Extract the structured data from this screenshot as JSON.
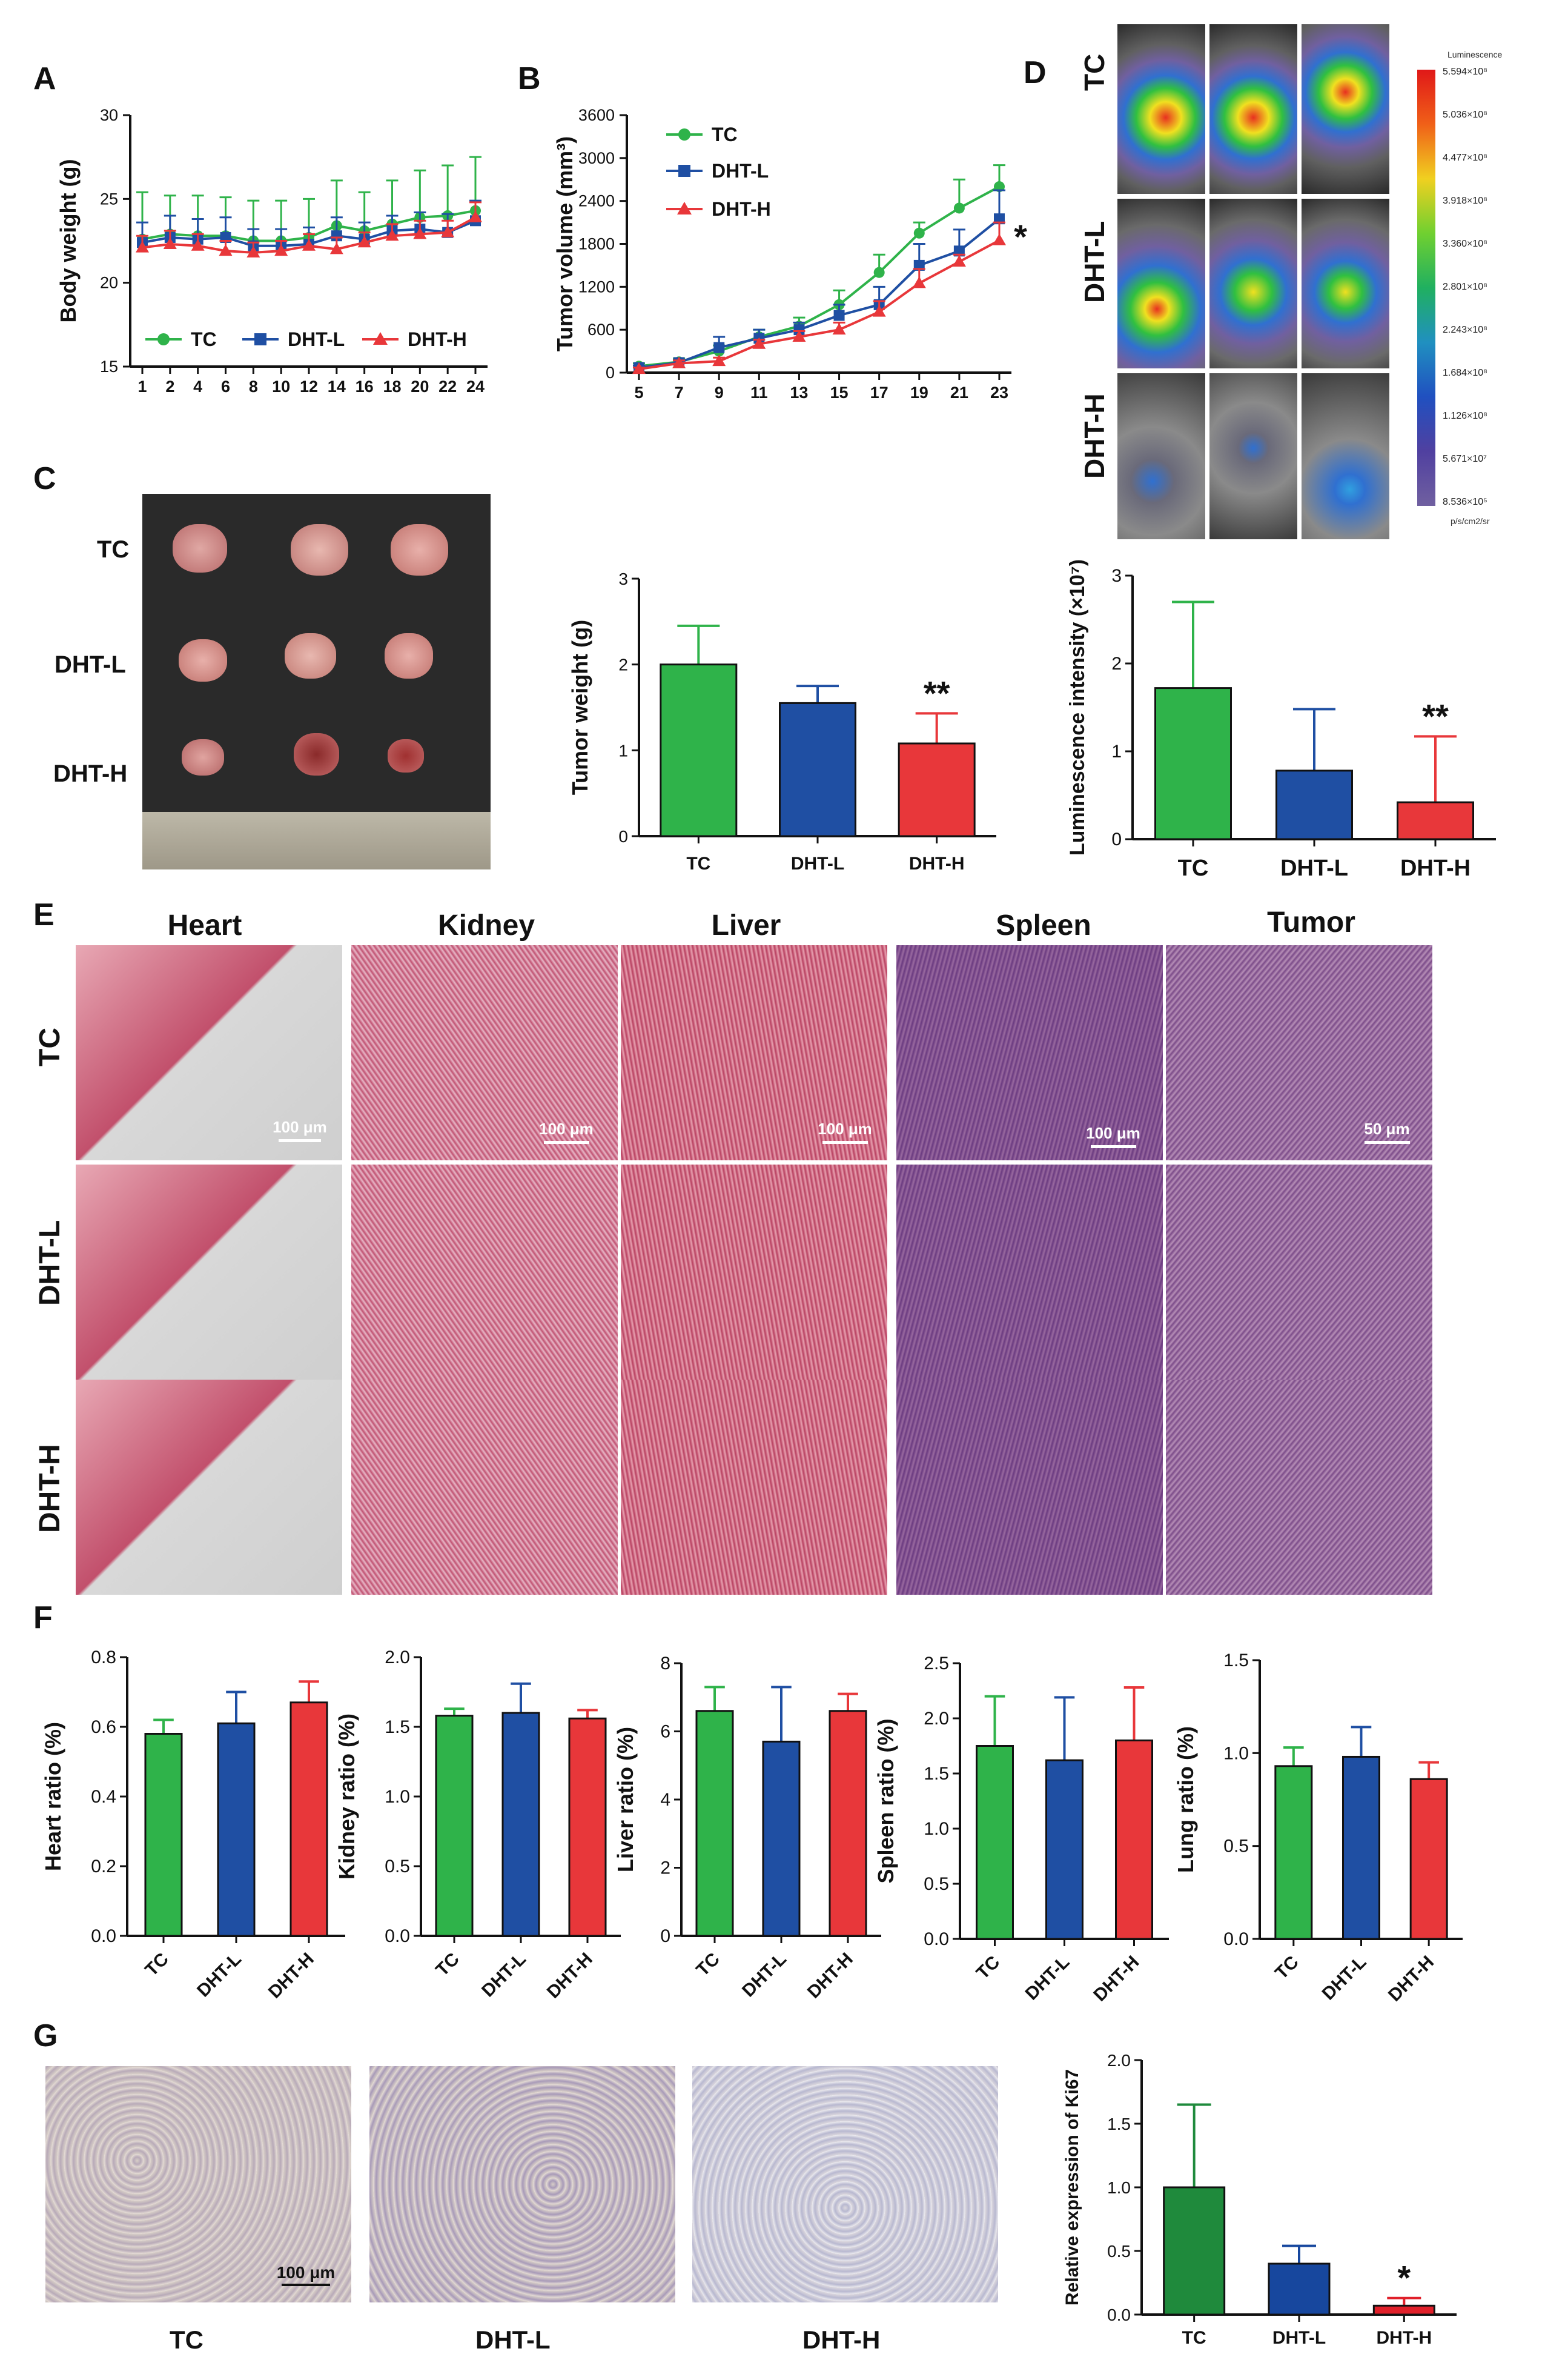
{
  "panel_letters": {
    "A": "A",
    "B": "B",
    "C": "C",
    "D": "D",
    "E": "E",
    "F": "F",
    "G": "G"
  },
  "colors": {
    "TC": "#2fb34a",
    "DHT-L": "#1f4fa3",
    "DHT-H": "#e8373a",
    "Ki67_TC": "#1f8a3c",
    "Ki67_L": "#17479e",
    "Ki67_H": "#e0202a"
  },
  "panel_c": {
    "group_labels": [
      "TC",
      "DHT-L",
      "DHT-H"
    ]
  },
  "panel_d": {
    "group_labels": [
      "TC",
      "DHT-L",
      "DHT-H"
    ],
    "colorbar_title": "Luminescence",
    "colorbar_ticks": [
      "5.594×10⁸",
      "5.036×10⁸",
      "4.477×10⁸",
      "3.918×10⁸",
      "3.360×10⁸",
      "2.801×10⁸",
      "2.243×10⁸",
      "1.684×10⁸",
      "1.126×10⁸",
      "5.671×10⁷",
      "8.536×10⁵"
    ],
    "colorbar_unit": "p/s/cm2/sr"
  },
  "panel_e": {
    "columns": [
      "Heart",
      "Kidney",
      "Liver",
      "Spleen",
      "Tumor"
    ],
    "rows": [
      "TC",
      "DHT-L",
      "DHT-H"
    ],
    "scale_bars": [
      "100 μm",
      "100 μm",
      "100 μm",
      "100 μm",
      "50 μm"
    ]
  },
  "panel_g": {
    "image_labels": [
      "TC",
      "DHT-L",
      "DHT-H"
    ],
    "scale_bar": "100 μm"
  },
  "chart_data": [
    {
      "id": "A",
      "type": "line",
      "ylabel": "Body weight (g)",
      "xlabel": "",
      "x": [
        1,
        2,
        4,
        6,
        8,
        10,
        12,
        14,
        16,
        18,
        20,
        22,
        24
      ],
      "xticks": [
        "1",
        "2",
        "4",
        "6",
        "8",
        "10",
        "12",
        "14",
        "16",
        "18",
        "20",
        "22",
        "24"
      ],
      "ylim": [
        15,
        30
      ],
      "yticks": [
        "15",
        "20",
        "25",
        "30"
      ],
      "legend": "bottom",
      "series": [
        {
          "name": "TC",
          "values": [
            22.6,
            22.9,
            22.8,
            22.8,
            22.5,
            22.5,
            22.7,
            23.4,
            23.1,
            23.5,
            23.9,
            24.0,
            24.3
          ],
          "err": [
            2.8,
            2.3,
            2.4,
            2.3,
            2.4,
            2.4,
            2.3,
            2.7,
            2.3,
            2.6,
            2.8,
            3.0,
            3.2
          ]
        },
        {
          "name": "DHT-L",
          "values": [
            22.4,
            22.7,
            22.6,
            22.7,
            22.2,
            22.2,
            22.3,
            22.8,
            22.6,
            23.1,
            23.2,
            23.0,
            23.7
          ],
          "err": [
            1.2,
            1.3,
            1.2,
            1.2,
            1.0,
            1.0,
            1.0,
            1.1,
            1.0,
            0.9,
            1.0,
            1.1,
            1.2
          ]
        },
        {
          "name": "DHT-H",
          "values": [
            22.1,
            22.3,
            22.2,
            21.9,
            21.8,
            21.9,
            22.2,
            22.0,
            22.4,
            22.8,
            22.9,
            23.0,
            23.9
          ],
          "err": [
            0.7,
            0.8,
            0.7,
            0.6,
            0.6,
            0.6,
            0.7,
            0.7,
            0.6,
            0.7,
            0.8,
            0.7,
            0.9
          ]
        }
      ]
    },
    {
      "id": "B",
      "type": "line",
      "ylabel": "Tumor volume (mm³)",
      "xlabel": "",
      "x": [
        5,
        7,
        9,
        11,
        13,
        15,
        17,
        19,
        21,
        23
      ],
      "xticks": [
        "5",
        "7",
        "9",
        "11",
        "13",
        "15",
        "17",
        "19",
        "21",
        "23"
      ],
      "ylim": [
        0,
        3600
      ],
      "yticks": [
        "0",
        "600",
        "1200",
        "1800",
        "2400",
        "3000",
        "3600"
      ],
      "legend": "top-left",
      "annotation": "*",
      "series": [
        {
          "name": "TC",
          "values": [
            90,
            150,
            300,
            500,
            650,
            950,
            1400,
            1950,
            2300,
            2600
          ],
          "err": [
            40,
            50,
            80,
            100,
            120,
            200,
            250,
            150,
            400,
            300
          ]
        },
        {
          "name": "DHT-L",
          "values": [
            70,
            140,
            350,
            480,
            600,
            800,
            950,
            1500,
            1700,
            2150
          ],
          "err": [
            30,
            40,
            150,
            120,
            100,
            150,
            250,
            300,
            300,
            400
          ]
        },
        {
          "name": "DHT-H",
          "values": [
            50,
            130,
            160,
            400,
            500,
            600,
            850,
            1250,
            1550,
            1850
          ],
          "err": [
            20,
            40,
            50,
            60,
            80,
            100,
            150,
            200,
            100,
            250
          ]
        }
      ]
    },
    {
      "id": "C-bar",
      "type": "bar",
      "categories": [
        "TC",
        "DHT-L",
        "DHT-H"
      ],
      "values": [
        2.0,
        1.55,
        1.08
      ],
      "err": [
        0.45,
        0.2,
        0.35
      ],
      "ylabel": "Tumor weight (g)",
      "ylim": [
        0,
        3
      ],
      "yticks": [
        "0",
        "1",
        "2",
        "3"
      ],
      "annotations": [
        "",
        "",
        "**"
      ]
    },
    {
      "id": "D-bar",
      "type": "bar",
      "categories": [
        "TC",
        "DHT-L",
        "DHT-H"
      ],
      "values": [
        1.72,
        0.78,
        0.42
      ],
      "err": [
        0.98,
        0.7,
        0.75
      ],
      "ylabel": "Luminescence intensity (×10⁷)",
      "ylim": [
        0,
        3
      ],
      "yticks": [
        "0",
        "1",
        "2",
        "3"
      ],
      "annotations": [
        "",
        "",
        "**"
      ]
    },
    {
      "id": "F-heart",
      "type": "bar",
      "categories": [
        "TC",
        "DHT-L",
        "DHT-H"
      ],
      "values": [
        0.58,
        0.61,
        0.67
      ],
      "err": [
        0.04,
        0.09,
        0.06
      ],
      "ylabel": "Heart ratio (%)",
      "ylim": [
        0,
        0.8
      ],
      "yticks": [
        "0.0",
        "0.2",
        "0.4",
        "0.6",
        "0.8"
      ]
    },
    {
      "id": "F-kidney",
      "type": "bar",
      "categories": [
        "TC",
        "DHT-L",
        "DHT-H"
      ],
      "values": [
        1.58,
        1.6,
        1.56
      ],
      "err": [
        0.05,
        0.21,
        0.06
      ],
      "ylabel": "Kidney ratio (%)",
      "ylim": [
        0,
        2.0
      ],
      "yticks": [
        "0.0",
        "0.5",
        "1.0",
        "1.5",
        "2.0"
      ]
    },
    {
      "id": "F-liver",
      "type": "bar",
      "categories": [
        "TC",
        "DHT-L",
        "DHT-H"
      ],
      "values": [
        6.6,
        5.7,
        6.6
      ],
      "err": [
        0.7,
        1.6,
        0.5
      ],
      "ylabel": "Liver ratio (%)",
      "ylim": [
        0,
        8
      ],
      "yticks": [
        "0",
        "2",
        "4",
        "6",
        "8"
      ]
    },
    {
      "id": "F-spleen",
      "type": "bar",
      "categories": [
        "TC",
        "DHT-L",
        "DHT-H"
      ],
      "values": [
        1.75,
        1.62,
        1.8
      ],
      "err": [
        0.45,
        0.57,
        0.48
      ],
      "ylabel": "Spleen ratio (%)",
      "ylim": [
        0,
        2.5
      ],
      "yticks": [
        "0.0",
        "0.5",
        "1.0",
        "1.5",
        "2.0",
        "2.5"
      ]
    },
    {
      "id": "F-lung",
      "type": "bar",
      "categories": [
        "TC",
        "DHT-L",
        "DHT-H"
      ],
      "values": [
        0.93,
        0.98,
        0.86
      ],
      "err": [
        0.1,
        0.16,
        0.09
      ],
      "ylabel": "Lung ratio (%)",
      "ylim": [
        0,
        1.5
      ],
      "yticks": [
        "0.0",
        "0.5",
        "1.0",
        "1.5"
      ]
    },
    {
      "id": "G-bar",
      "type": "bar",
      "categories": [
        "TC",
        "DHT-L",
        "DHT-H"
      ],
      "values": [
        1.0,
        0.4,
        0.07
      ],
      "err": [
        0.65,
        0.14,
        0.06
      ],
      "ylabel": "Relative expression of Ki67",
      "ylim": [
        0,
        2.0
      ],
      "yticks": [
        "0.0",
        "0.5",
        "1.0",
        "1.5",
        "2.0"
      ],
      "annotations": [
        "",
        "",
        "*"
      ]
    }
  ]
}
